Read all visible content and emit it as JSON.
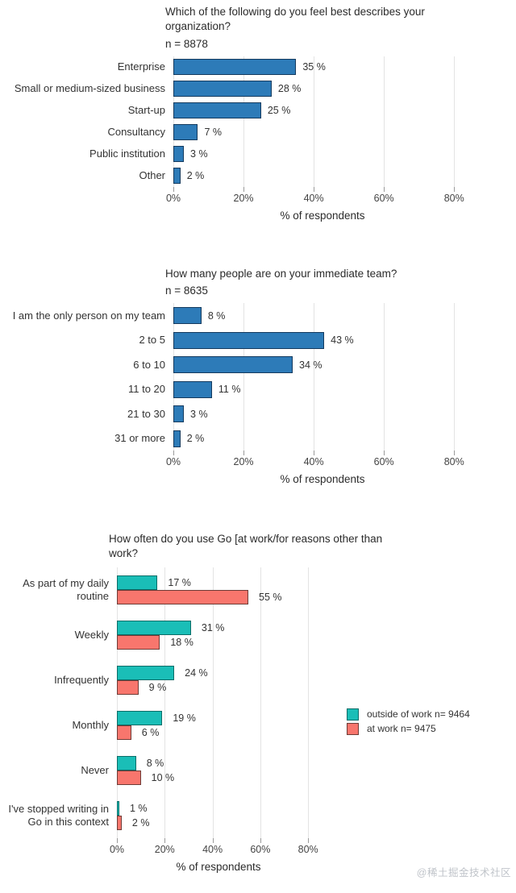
{
  "watermark": "@稀土掘金技术社区",
  "colors": {
    "bar_blue": "#2D7BB8",
    "bar_blue_border": "#143A5E",
    "teal": "#1ABEB7",
    "teal_border": "#0C6D68",
    "salmon": "#F8766D",
    "salmon_border": "#6E3B36",
    "grid": "#e3e3e3"
  },
  "chart_data": [
    {
      "type": "bar",
      "orientation": "horizontal",
      "title": "Which of the following do you feel best describes your organization?",
      "n_label": "n = 8878",
      "categories": [
        "Enterprise",
        "Small or medium-sized business",
        "Start-up",
        "Consultancy",
        "Public institution",
        "Other"
      ],
      "values": [
        35,
        28,
        25,
        7,
        3,
        2
      ],
      "value_suffix": " %",
      "xlabel": "% of respondents",
      "xlim": [
        0,
        85
      ],
      "xticks": [
        0,
        20,
        40,
        60,
        80
      ],
      "xtick_labels": [
        "0%",
        "20%",
        "40%",
        "60%",
        "80%"
      ],
      "grid": true
    },
    {
      "type": "bar",
      "orientation": "horizontal",
      "title": "How many people are on your immediate team?",
      "n_label": "n = 8635",
      "categories": [
        "I am the only person on my team",
        "2 to 5",
        "6 to 10",
        "11 to 20",
        "21 to 30",
        "31 or more"
      ],
      "values": [
        8,
        43,
        34,
        11,
        3,
        2
      ],
      "value_suffix": " %",
      "xlabel": "% of respondents",
      "xlim": [
        0,
        85
      ],
      "xticks": [
        0,
        20,
        40,
        60,
        80
      ],
      "xtick_labels": [
        "0%",
        "20%",
        "40%",
        "60%",
        "80%"
      ],
      "grid": true
    },
    {
      "type": "bar",
      "orientation": "horizontal",
      "grouped": true,
      "title": "How often do you use Go [at work/for reasons other than work?",
      "categories": [
        "As part of my daily routine",
        "Weekly",
        "Infrequently",
        "Monthly",
        "Never",
        "I've stopped writing in Go in this context"
      ],
      "series": [
        {
          "name": "outside of work n= 9464",
          "color": "#1ABEB7",
          "border": "#0C6D68",
          "values": [
            17,
            31,
            24,
            19,
            8,
            1
          ]
        },
        {
          "name": "at work n= 9475",
          "color": "#F8766D",
          "border": "#6E3B36",
          "values": [
            55,
            18,
            9,
            6,
            10,
            2
          ]
        }
      ],
      "value_suffix": " %",
      "xlabel": "% of respondents",
      "xlim": [
        0,
        85
      ],
      "xticks": [
        0,
        20,
        40,
        60,
        80
      ],
      "xtick_labels": [
        "0%",
        "20%",
        "40%",
        "60%",
        "80%"
      ],
      "legend_position": "right",
      "grid": true
    }
  ]
}
